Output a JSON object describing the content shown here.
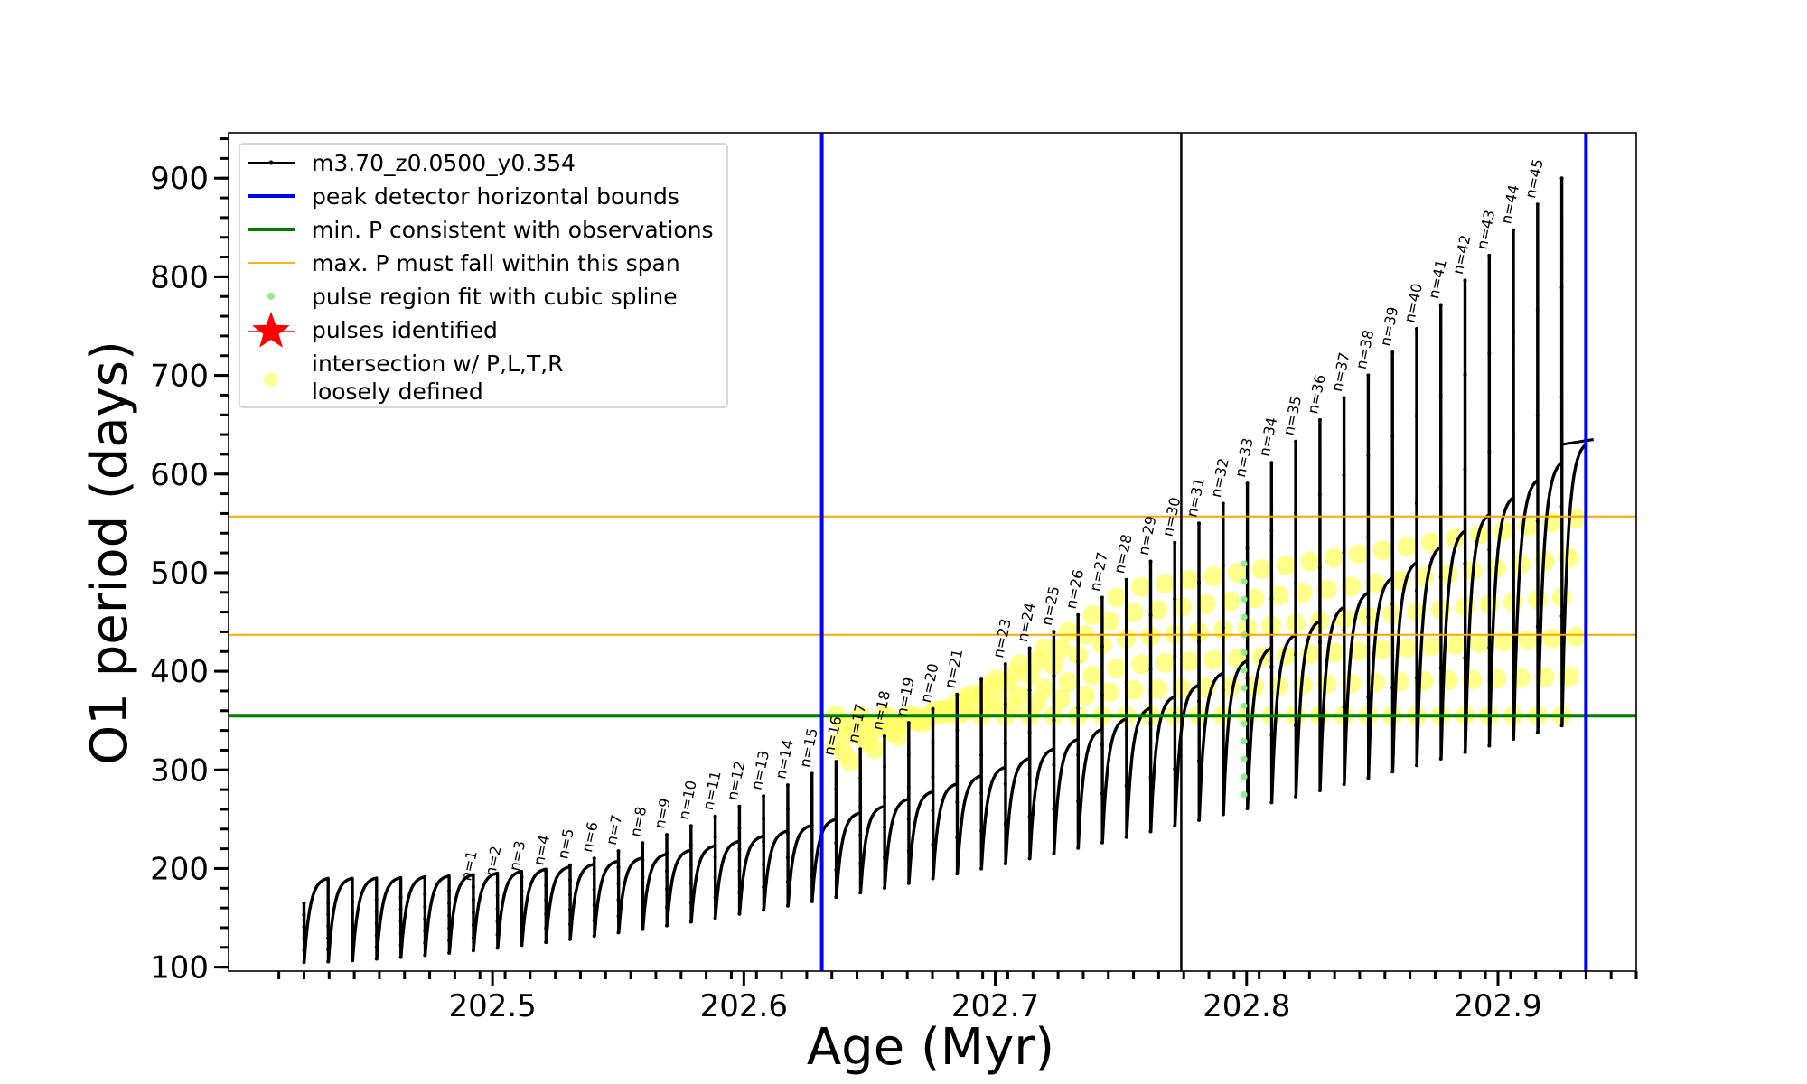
{
  "chart_data": {
    "type": "line",
    "xlabel": "Age (Myr)",
    "ylabel": "O1 period (days)",
    "xlim": [
      202.395,
      202.955
    ],
    "ylim": [
      96,
      946
    ],
    "x_ticks": [
      "202.5",
      "202.6",
      "202.7",
      "202.8",
      "202.9"
    ],
    "y_ticks": [
      "100",
      "200",
      "300",
      "400",
      "500",
      "600",
      "700",
      "800",
      "900"
    ],
    "legend_position": "top-left",
    "legend": [
      {
        "label": "m3.70_z0.0500_y0.354",
        "marker": "line-dot",
        "color": "#000000"
      },
      {
        "label": "peak detector horizontal bounds",
        "marker": "line",
        "color": "#0000ff"
      },
      {
        "label": "min. P consistent with observations",
        "marker": "line",
        "color": "#008000"
      },
      {
        "label": "max. P must fall within this span",
        "marker": "thin-line",
        "color": "#ffa500"
      },
      {
        "label": "pulse region fit with cubic spline",
        "marker": "dot",
        "color": "#90ee90"
      },
      {
        "label": "pulses identified",
        "marker": "star",
        "color": "#ff0000"
      },
      {
        "label": "intersection w/ P,L,T,R",
        "label2": "loosely defined",
        "marker": "circle",
        "color": "#ffff99"
      }
    ],
    "reference_lines": {
      "blue_vertical_x": [
        202.631,
        202.935
      ],
      "black_vertical_x": [
        202.774
      ],
      "green_horizontal_y": [
        355
      ],
      "orange_horizontal_y": [
        437,
        557
      ]
    },
    "pulse_labels": [
      "n=1",
      "n=2",
      "n=3",
      "n=4",
      "n=5",
      "n=6",
      "n=7",
      "n=8",
      "n=9",
      "n=10",
      "n=11",
      "n=12",
      "n=13",
      "n=14",
      "n=15",
      "n=16",
      "n=17",
      "n=18",
      "n=19",
      "n=20",
      "n=21",
      "n=23",
      "n=24",
      "n=25",
      "n=26",
      "n=27",
      "n=28",
      "n=29",
      "n=30",
      "n=31",
      "n=32",
      "n=33",
      "n=34",
      "n=35",
      "n=36",
      "n=37",
      "n=38",
      "n=39",
      "n=40",
      "n=41",
      "n=42",
      "n=43",
      "n=44",
      "n=45"
    ],
    "series": [
      {
        "label_ref": "m3.70_z0.0500_y0.354",
        "color": "#000000",
        "cycle_start_x": 202.425,
        "cycle_end_x": 202.935,
        "cycle_count": 53,
        "trough_start": 105,
        "trough_end": 345,
        "arch_start": 190,
        "arch_end": 630,
        "spike_start": 165,
        "spike_end": 900
      }
    ],
    "colors": {
      "curve": "#000000",
      "blue": "#0000ff",
      "green": "#008000",
      "orange": "#ffa500",
      "spline": "#90ee90",
      "yellow": "#ffff66"
    }
  }
}
